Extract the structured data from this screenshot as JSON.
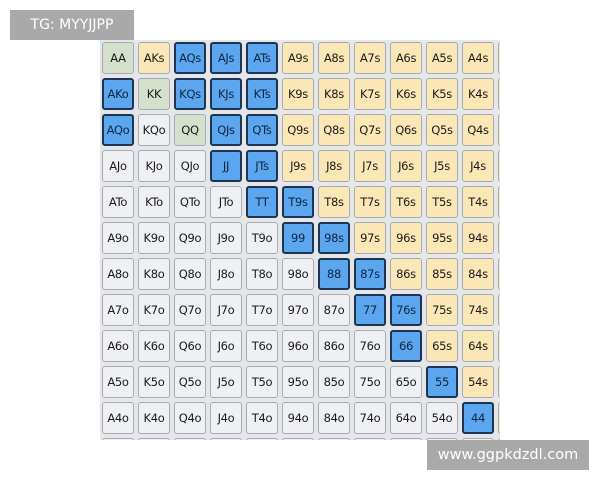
{
  "watermark_top": "TG: MYYJJPP",
  "watermark_bottom": "www.ggpkdzdl.com",
  "colors": {
    "pair": "#d5e0cc",
    "suited": "#fbe6b6",
    "offsuit": "#eef0f3",
    "selected": "#5ba6ef"
  },
  "grid": {
    "rows": [
      [
        "AA",
        "AKs",
        "AQs",
        "AJs",
        "ATs",
        "A9s",
        "A8s",
        "A7s",
        "A6s",
        "A5s",
        "A4s"
      ],
      [
        "AKo",
        "KK",
        "KQs",
        "KJs",
        "KTs",
        "K9s",
        "K8s",
        "K7s",
        "K6s",
        "K5s",
        "K4s"
      ],
      [
        "AQo",
        "KQo",
        "QQ",
        "QJs",
        "QTs",
        "Q9s",
        "Q8s",
        "Q7s",
        "Q6s",
        "Q5s",
        "Q4s"
      ],
      [
        "AJo",
        "KJo",
        "QJo",
        "JJ",
        "JTs",
        "J9s",
        "J8s",
        "J7s",
        "J6s",
        "J5s",
        "J4s"
      ],
      [
        "ATo",
        "KTo",
        "QTo",
        "JTo",
        "TT",
        "T9s",
        "T8s",
        "T7s",
        "T6s",
        "T5s",
        "T4s"
      ],
      [
        "A9o",
        "K9o",
        "Q9o",
        "J9o",
        "T9o",
        "99",
        "98s",
        "97s",
        "96s",
        "95s",
        "94s"
      ],
      [
        "A8o",
        "K8o",
        "Q8o",
        "J8o",
        "T8o",
        "98o",
        "88",
        "87s",
        "86s",
        "85s",
        "84s"
      ],
      [
        "A7o",
        "K7o",
        "Q7o",
        "J7o",
        "T7o",
        "97o",
        "87o",
        "77",
        "76s",
        "75s",
        "74s"
      ],
      [
        "A6o",
        "K6o",
        "Q6o",
        "J6o",
        "T6o",
        "96o",
        "86o",
        "76o",
        "66",
        "65s",
        "64s"
      ],
      [
        "A5o",
        "K5o",
        "Q5o",
        "J5o",
        "T5o",
        "95o",
        "85o",
        "75o",
        "65o",
        "55",
        "54s"
      ],
      [
        "A4o",
        "K4o",
        "Q4o",
        "J4o",
        "T4o",
        "94o",
        "84o",
        "74o",
        "64o",
        "54o",
        "44"
      ]
    ],
    "selected": [
      "AQs",
      "AJs",
      "ATs",
      "AKo",
      "KQs",
      "KJs",
      "KTs",
      "AQo",
      "QJs",
      "QTs",
      "JJ",
      "JTs",
      "TT",
      "T9s",
      "99",
      "98s",
      "88",
      "87s",
      "77",
      "76s",
      "66",
      "55",
      "44"
    ]
  }
}
